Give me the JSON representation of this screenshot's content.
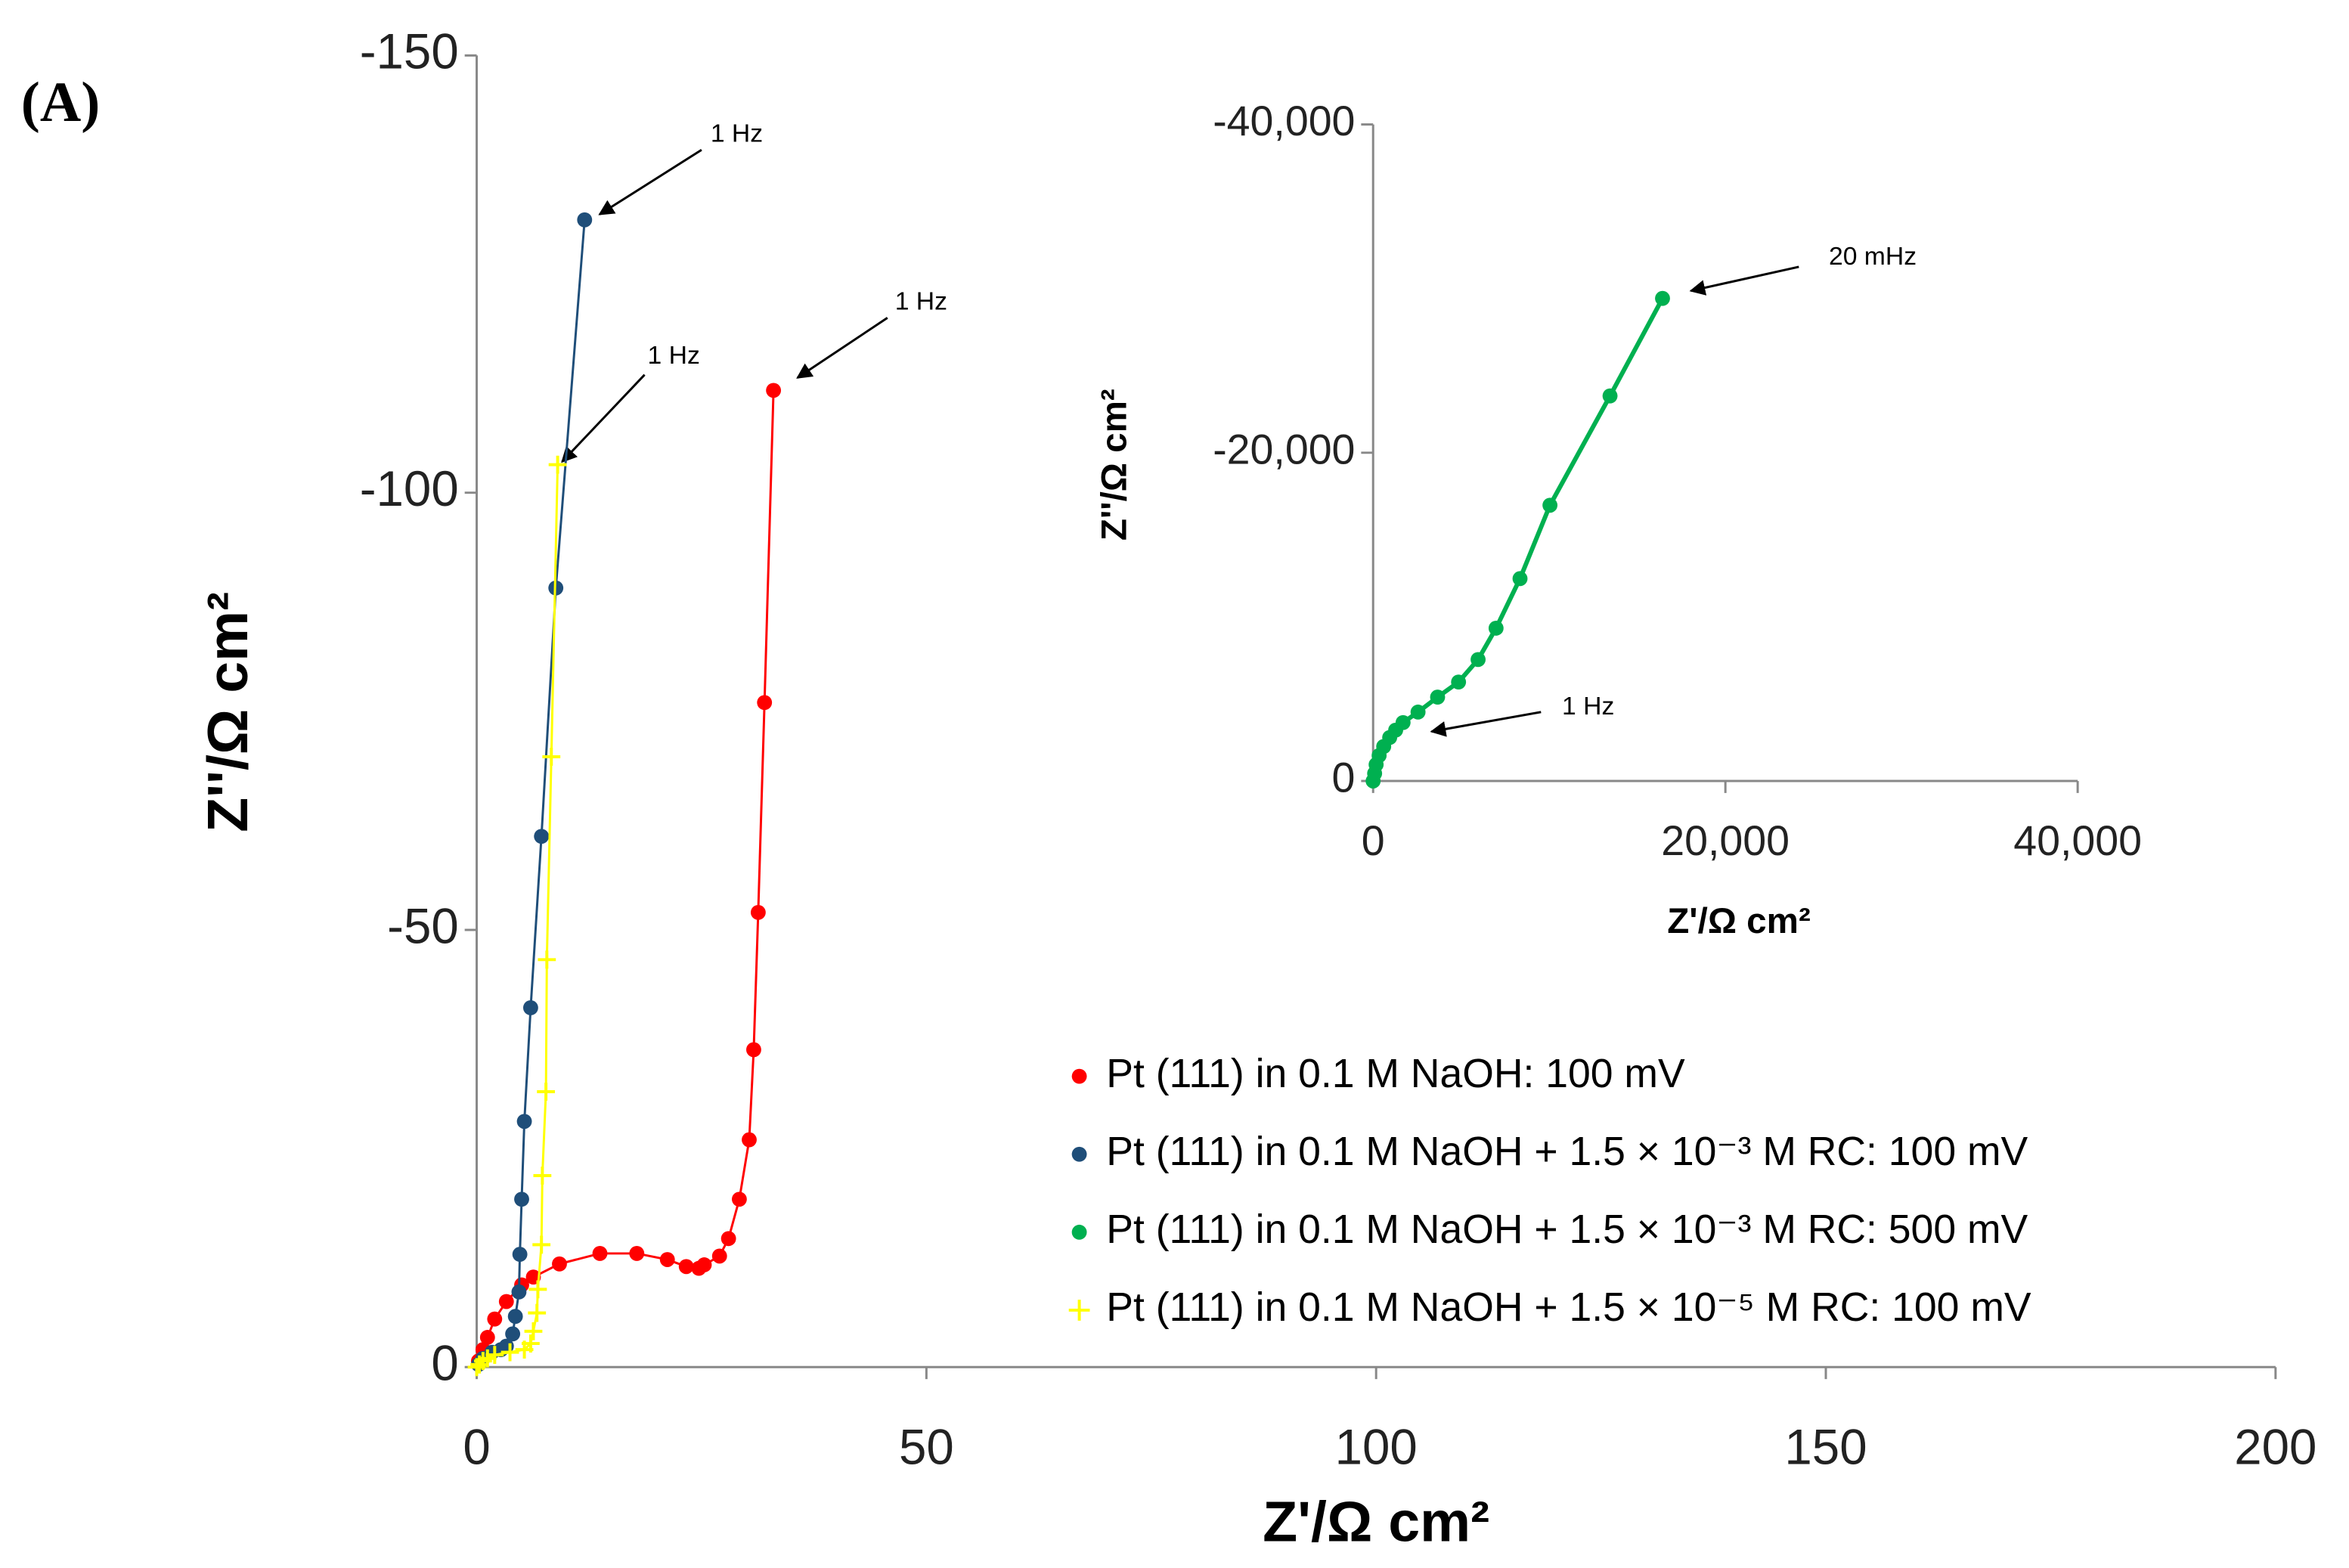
{
  "chart_data": [
    {
      "type": "line",
      "panel_label": "(A)",
      "x_label": "Z'/Ω cm²",
      "y_label": "Z''/Ω cm²",
      "xlim": [
        0,
        200
      ],
      "xticks": [
        0,
        50,
        100,
        150,
        200
      ],
      "ylim": [
        0,
        -150
      ],
      "yticks": [
        0,
        -50,
        -100,
        -150
      ],
      "annotations": [
        "1 Hz",
        "1 Hz",
        "1 Hz"
      ],
      "series": [
        {
          "name": "Pt (111)  in 0.1 M NaOH: 100 mV",
          "color": "#ff0000",
          "marker": "circle",
          "x": [
            0.2,
            0.7,
            1.2,
            2,
            3.3,
            5,
            6.3,
            9.2,
            13.7,
            17.8,
            21.2,
            23.3,
            24.7,
            25.3,
            27,
            28,
            29.2,
            30.3,
            30.8,
            31.3,
            32,
            33
          ],
          "values": [
            -0.7,
            -2,
            -3.4,
            -5.5,
            -7.5,
            -9.4,
            -10.3,
            -11.8,
            -13,
            -13,
            -12.3,
            -11.5,
            -11.3,
            -11.7,
            -12.7,
            -14.7,
            -19.2,
            -26,
            -36.3,
            -52,
            -76,
            -111.7
          ]
        },
        {
          "name": "Pt (111) in 0.1 M NaOH + 1.5 × 10⁻³ M RC: 100 mV",
          "color": "#1f4e79",
          "marker": "circle",
          "x": [
            0.2,
            0.7,
            1.7,
            2.7,
            3.3,
            4,
            4.3,
            4.7,
            4.8,
            5,
            5.3,
            6,
            7.2,
            8.8,
            12
          ],
          "values": [
            -0.3,
            -1,
            -1.7,
            -2,
            -2.4,
            -3.8,
            -5.8,
            -8.6,
            -12.9,
            -19.2,
            -28.1,
            -41.1,
            -60.7,
            -89.1,
            -131.2
          ]
        },
        {
          "name": "Pt (111) in 0.1 M NaOH + 1.5 × 10⁻⁵  M RC: 100 mV",
          "color": "#ffff00",
          "marker": "plus",
          "x": [
            0,
            0.3,
            0.7,
            1.2,
            2,
            3.7,
            5.3,
            6,
            6.3,
            6.7,
            6.8,
            7.2,
            7.3,
            7.7,
            7.8,
            8.3,
            9
          ],
          "values": [
            0,
            -0.3,
            -0.7,
            -1,
            -1.4,
            -1.7,
            -2,
            -2.7,
            -4.1,
            -6.2,
            -8.9,
            -14,
            -21.9,
            -31.5,
            -46.6,
            -69.8,
            -103.2
          ]
        }
      ]
    },
    {
      "type": "line",
      "x_label": "Z'/Ω cm²",
      "y_label": "Z''/Ω cm²",
      "xlim": [
        0,
        40000
      ],
      "xticks": [
        0,
        {
          "value": 20000,
          "label": "20,000"
        },
        {
          "value": 40000,
          "label": "40,000"
        }
      ],
      "ylim": [
        0,
        -40000
      ],
      "yticks": [
        0,
        {
          "value": -20000,
          "label": "-20,000"
        },
        {
          "value": -40000,
          "label": "-40,000"
        }
      ],
      "annotations": [
        "20 mHz",
        "1 Hz"
      ],
      "series": [
        {
          "name": "Pt (111) in 0.1 M NaOH + 1.5 × 10⁻³ M RC: 500 mV",
          "color": "#00b050",
          "marker": "circle",
          "x": [
            0,
            85,
            170,
            340,
            600,
            940,
            1280,
            1700,
            2550,
            3660,
            4850,
            5960,
            6980,
            8340,
            10040,
            13450,
            16430
          ],
          "values": [
            0,
            -460,
            -1000,
            -1550,
            -2100,
            -2650,
            -3100,
            -3560,
            -4200,
            -5110,
            -6030,
            -7400,
            -9310,
            -12330,
            -16800,
            -23460,
            -29400
          ]
        }
      ]
    }
  ]
}
